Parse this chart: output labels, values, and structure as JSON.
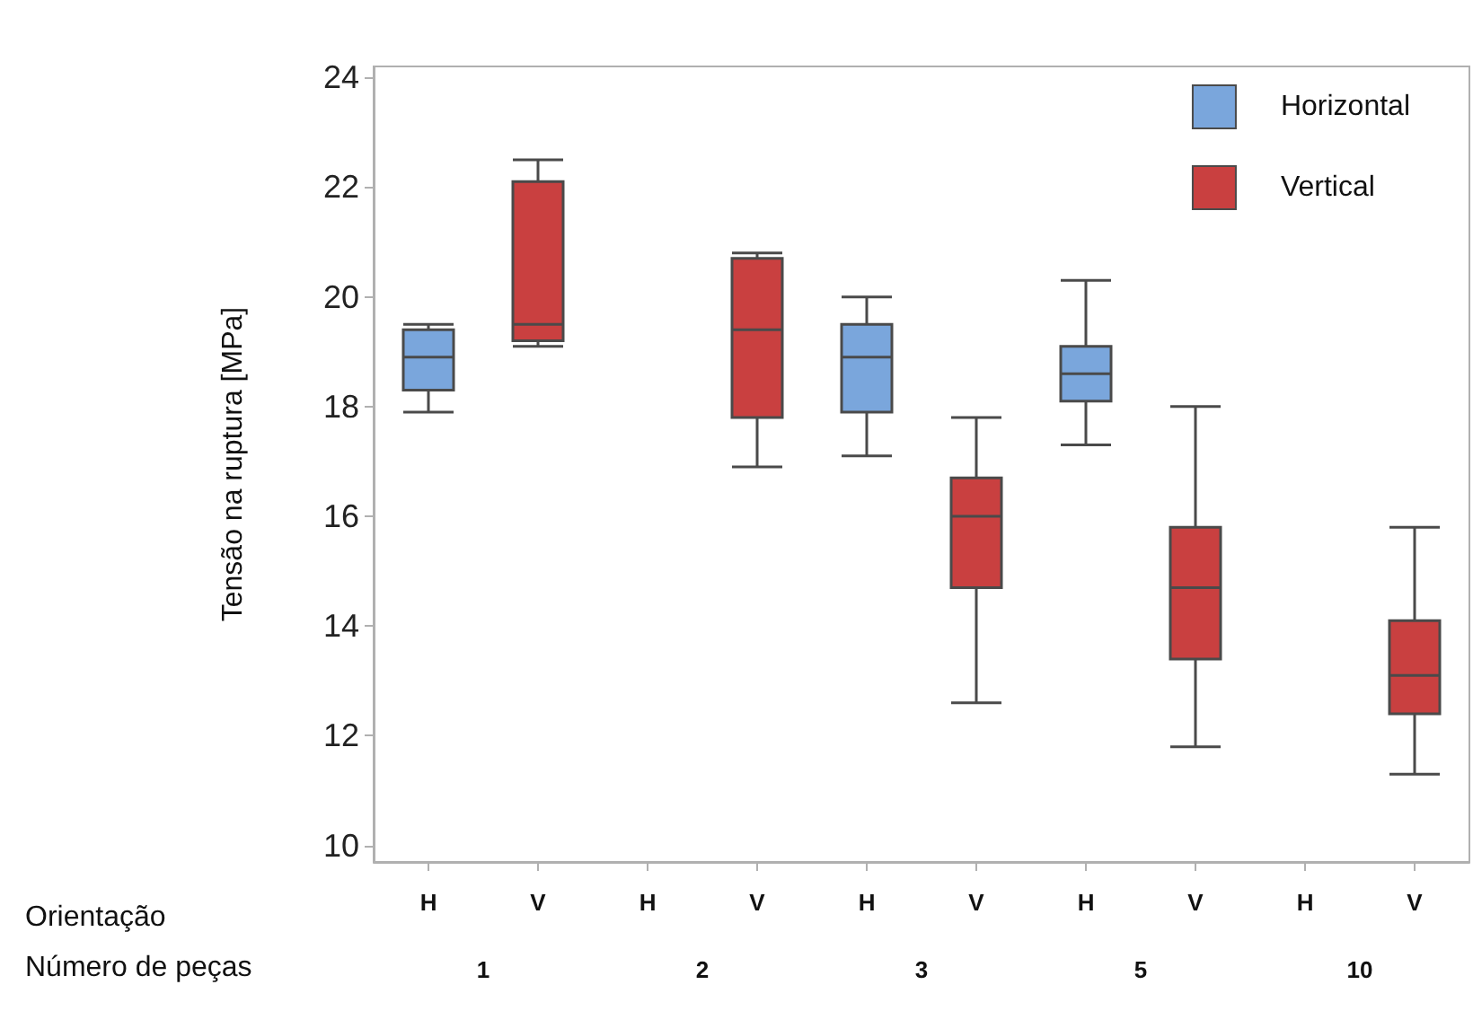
{
  "chart_data": {
    "type": "box",
    "ylabel": "Tensão na ruptura [MPa]",
    "categories": [
      "H",
      "V",
      "H",
      "V",
      "H",
      "V",
      "H",
      "V",
      "H",
      "V"
    ],
    "series": [
      {
        "name": "Horizontal",
        "color": "#7aa6dc",
        "boxes": [
          {
            "low": 17.9,
            "q1": 18.3,
            "median": 18.9,
            "q3": 19.4,
            "high": 19.5
          },
          null,
          null,
          null,
          {
            "low": 17.1,
            "q1": 17.9,
            "median": 18.9,
            "q3": 19.5,
            "high": 20.0
          },
          null,
          {
            "low": 17.3,
            "q1": 18.1,
            "median": 18.6,
            "q3": 19.1,
            "high": 20.3
          },
          null,
          null,
          null
        ]
      },
      {
        "name": "Vertical",
        "color": "#c94040",
        "boxes": [
          null,
          {
            "low": 19.1,
            "q1": 19.2,
            "median": 19.5,
            "q3": 22.1,
            "high": 22.5
          },
          null,
          {
            "low": 16.9,
            "q1": 17.8,
            "median": 19.4,
            "q3": 20.7,
            "high": 20.8
          },
          null,
          {
            "low": 12.6,
            "q1": 14.7,
            "median": 16.0,
            "q3": 16.7,
            "high": 17.8
          },
          null,
          {
            "low": 11.8,
            "q1": 13.4,
            "median": 14.7,
            "q3": 15.8,
            "high": 18.0
          },
          null,
          {
            "low": 11.3,
            "q1": 12.4,
            "median": 13.1,
            "q3": 14.1,
            "high": 15.8
          }
        ]
      }
    ],
    "ylim": [
      9.7,
      24.2
    ],
    "yticks": [
      10,
      12,
      14,
      16,
      18,
      20,
      22,
      24
    ],
    "grid": false,
    "legend": "top right",
    "annotations": [
      "Orientação",
      "Número de peças",
      "1",
      "2",
      "3",
      "5",
      "10"
    ]
  }
}
